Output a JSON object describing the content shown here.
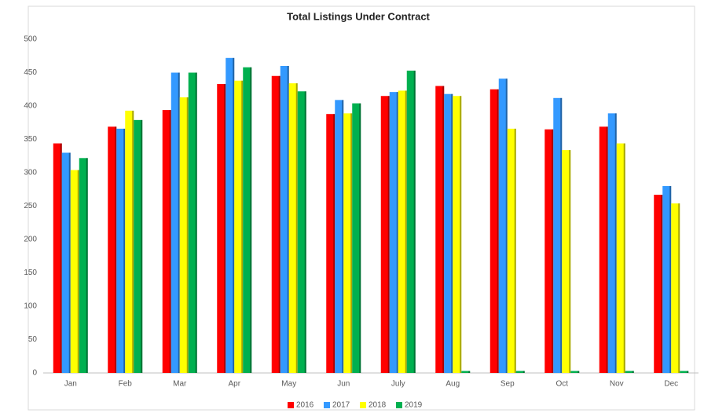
{
  "chart_data": {
    "type": "bar",
    "title": "Total Listings Under Contract",
    "categories": [
      "Jan",
      "Feb",
      "Mar",
      "Apr",
      "May",
      "Jun",
      "July",
      "Aug",
      "Sep",
      "Oct",
      "Nov",
      "Dec"
    ],
    "series": [
      {
        "name": "2016",
        "color": "#ff0000",
        "values": [
          344,
          369,
          394,
          433,
          445,
          388,
          415,
          430,
          425,
          365,
          369,
          267
        ]
      },
      {
        "name": "2017",
        "color": "#3399ff",
        "values": [
          330,
          366,
          450,
          472,
          460,
          409,
          421,
          418,
          441,
          412,
          389,
          280
        ]
      },
      {
        "name": "2018",
        "color": "#ffff00",
        "values": [
          304,
          393,
          413,
          438,
          434,
          389,
          423,
          415,
          366,
          334,
          344,
          254
        ]
      },
      {
        "name": "2019",
        "color": "#00b050",
        "values": [
          322,
          379,
          450,
          458,
          422,
          404,
          453,
          3,
          3,
          3,
          3,
          3
        ]
      }
    ],
    "ylim": [
      0,
      500
    ],
    "yticks": [
      0,
      50,
      100,
      150,
      200,
      250,
      300,
      350,
      400,
      450,
      500
    ],
    "grid": false,
    "legend": "bottom"
  }
}
